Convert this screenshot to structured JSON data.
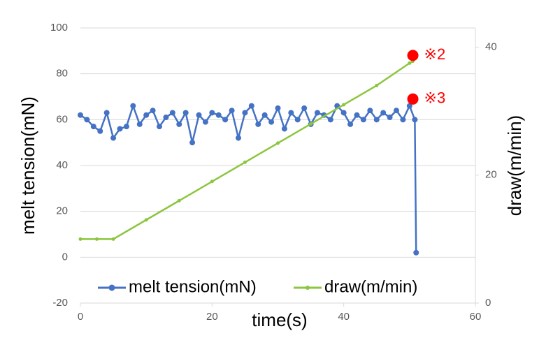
{
  "chart_data": {
    "type": "line",
    "xlabel": "time(s)",
    "ylabel": "melt tension(mN)",
    "y2label": "draw(m/min)",
    "xlim": [
      0,
      60
    ],
    "xticks": [
      0,
      20,
      40,
      60
    ],
    "ylim": [
      -20,
      100
    ],
    "yticks": [
      -20,
      0,
      20,
      40,
      60,
      80,
      100
    ],
    "y2lim": [
      0,
      43
    ],
    "y2ticks": [
      0,
      20,
      40
    ],
    "grid": true,
    "legend": "bottom",
    "series": [
      {
        "name": "melt tension(mN)",
        "color": "#4472c4",
        "axis": "y",
        "x": [
          0,
          1,
          2,
          3,
          4,
          5,
          6,
          7,
          8,
          9,
          10,
          11,
          12,
          13,
          14,
          15,
          16,
          17,
          18,
          19,
          20,
          21,
          22,
          23,
          24,
          25,
          26,
          27,
          28,
          29,
          30,
          31,
          32,
          33,
          34,
          35,
          36,
          37,
          38,
          39,
          40,
          41,
          42,
          43,
          44,
          45,
          46,
          47,
          48,
          49,
          50,
          50.8,
          51
        ],
        "values": [
          62,
          60,
          57,
          55,
          63,
          52,
          56,
          57,
          66,
          58,
          62,
          64,
          57,
          61,
          63,
          58,
          63,
          50,
          62,
          59,
          63,
          62,
          60,
          64,
          52,
          63,
          66,
          58,
          62,
          59,
          65,
          56,
          63,
          60,
          65,
          58,
          63,
          62,
          60,
          66,
          63,
          58,
          62,
          60,
          64,
          60,
          63,
          61,
          64,
          60,
          66,
          60,
          2
        ]
      },
      {
        "name": "draw(m/min)",
        "color": "#8cc63f",
        "axis": "y2",
        "x": [
          0,
          2.5,
          5,
          10,
          15,
          20,
          25,
          30,
          35,
          40,
          45,
          50,
          50.5
        ],
        "values": [
          10,
          10,
          10,
          13,
          16,
          19,
          22,
          25,
          28,
          31,
          34,
          37.5,
          37.8
        ]
      }
    ],
    "annotations": [
      {
        "text": "※2",
        "x": 50.5,
        "y": 88,
        "color": "#ff0000"
      },
      {
        "text": "※3",
        "x": 50.5,
        "y": 69,
        "color": "#ff0000"
      }
    ]
  }
}
